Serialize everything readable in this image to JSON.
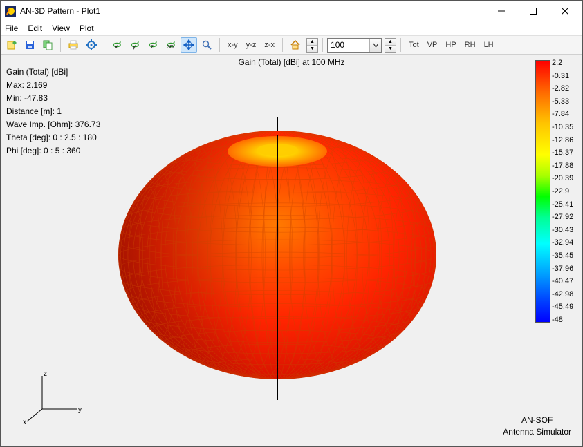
{
  "window": {
    "title": "AN-3D Pattern - Plot1"
  },
  "menu": {
    "file": "File",
    "edit": "Edit",
    "view": "View",
    "plot": "Plot"
  },
  "toolbar": {
    "freq_value": "100",
    "xy": "x-y",
    "yz": "y-z",
    "zx": "z-x",
    "tot": "Tot",
    "vp": "VP",
    "hp": "HP",
    "rh": "RH",
    "lh": "LH"
  },
  "plot": {
    "title": "Gain (Total) [dBi] at 100 MHz",
    "info": {
      "header": "Gain (Total) [dBi]",
      "max": "Max: 2.169",
      "min": "Min: -47.83",
      "distance": "Distance [m]: 1",
      "waveimp": "Wave Imp. [Ohm]: 376.73",
      "theta": "Theta [deg]: 0 : 2.5 : 180",
      "phi": "Phi [deg]: 0 : 5 : 360"
    },
    "branding": {
      "l1": "AN-SOF",
      "l2": "Antenna Simulator"
    },
    "axes": {
      "x": "x",
      "y": "y",
      "z": "z"
    }
  },
  "colorbar": {
    "gradient_stops": [
      {
        "c": "#ff0000",
        "p": 0
      },
      {
        "c": "#ff6a00",
        "p": 12
      },
      {
        "c": "#ffc400",
        "p": 24
      },
      {
        "c": "#ffff00",
        "p": 36
      },
      {
        "c": "#a8ff00",
        "p": 44
      },
      {
        "c": "#00ff00",
        "p": 52
      },
      {
        "c": "#00ff94",
        "p": 60
      },
      {
        "c": "#00ffff",
        "p": 70
      },
      {
        "c": "#009cff",
        "p": 82
      },
      {
        "c": "#0040ff",
        "p": 92
      },
      {
        "c": "#0000ff",
        "p": 100
      }
    ],
    "labels": [
      "2.2",
      "-0.31",
      "-2.82",
      "-5.33",
      "-7.84",
      "-10.35",
      "-12.86",
      "-15.37",
      "-17.88",
      "-20.39",
      "-22.9",
      "-25.41",
      "-27.92",
      "-30.43",
      "-32.94",
      "-35.45",
      "-37.96",
      "-40.47",
      "-42.98",
      "-45.49",
      "-48"
    ]
  },
  "pattern_style": {
    "type": "3d-torus-gain",
    "body_gradient": {
      "inner": "#ff2a00",
      "mid": "#ff5a00",
      "outer": "#ff3300",
      "top_ring": "#ffde00",
      "shadow": "#b01000"
    },
    "mesh_color": "#c23a00",
    "axis_color": "#000000",
    "background": "#f0f0f0",
    "oblateness": 0.78
  }
}
